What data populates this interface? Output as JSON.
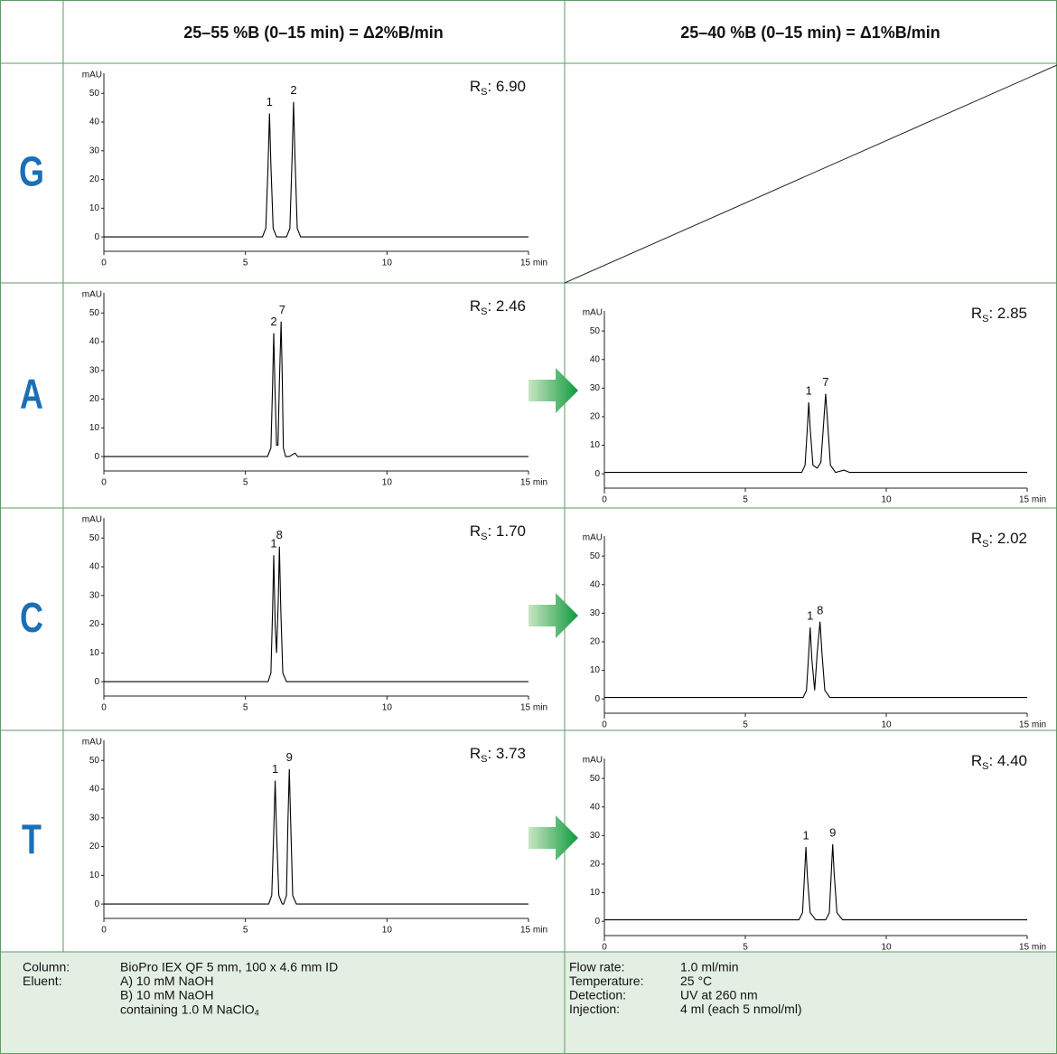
{
  "header": {
    "columns": [
      "25–55 %B (0–15 min) = Δ2%B/min",
      "25–40 %B (0–15 min) = Δ1%B/min"
    ]
  },
  "rows": [
    "G",
    "A",
    "C",
    "T"
  ],
  "chart_data": [
    {
      "type": "line",
      "y_label": "mAU",
      "xlim": [
        0,
        15
      ],
      "ylim": [
        -5,
        57
      ],
      "yticks": [
        0,
        10,
        20,
        30,
        40,
        50
      ],
      "xticks": [
        0,
        5,
        10,
        {
          "value": 15,
          "label": "15 min"
        }
      ],
      "color": "#000000",
      "x": [
        0,
        5.6,
        5.72,
        5.8,
        5.85,
        5.9,
        5.98,
        6.1,
        6.45,
        6.57,
        6.65,
        6.7,
        6.75,
        6.83,
        6.95,
        15
      ],
      "values": [
        0,
        0,
        3,
        25,
        43,
        25,
        3,
        0,
        0,
        3,
        28,
        47,
        28,
        3,
        0,
        0
      ],
      "peaks": [
        {
          "label": "1",
          "x": 5.85,
          "y": 43
        },
        {
          "label": "2",
          "x": 6.7,
          "y": 47
        }
      ],
      "resolution": {
        "symbol": "R",
        "subscript": "S",
        "text": ": 6.90"
      }
    },
    {
      "type": "line",
      "y_label": "mAU",
      "xlim": [
        0,
        15
      ],
      "ylim": [
        -5,
        57
      ],
      "yticks": [
        0,
        10,
        20,
        30,
        40,
        50
      ],
      "xticks": [
        0,
        5,
        10,
        {
          "value": 15,
          "label": "15 min"
        }
      ],
      "color": "#000000",
      "x": [
        0,
        5.78,
        5.9,
        5.96,
        6.0,
        6.04,
        6.1,
        6.15,
        6.2,
        6.26,
        6.3,
        6.34,
        6.42,
        6.55,
        6.75,
        6.85,
        6.95,
        15
      ],
      "values": [
        0,
        0,
        3,
        25,
        43,
        25,
        4,
        4,
        26,
        47,
        28,
        3,
        0,
        0,
        1.2,
        0,
        0,
        0
      ],
      "peaks": [
        {
          "label": "2",
          "x": 6.0,
          "y": 43
        },
        {
          "label": "7",
          "x": 6.3,
          "y": 47
        }
      ],
      "resolution": {
        "symbol": "R",
        "subscript": "S",
        "text": ": 2.46"
      }
    },
    {
      "type": "line",
      "y_label": "mAU",
      "xlim": [
        0,
        15
      ],
      "ylim": [
        -5,
        57
      ],
      "yticks": [
        0,
        10,
        20,
        30,
        40,
        50
      ],
      "xticks": [
        0,
        5,
        10,
        {
          "value": 15,
          "label": "15 min"
        }
      ],
      "color": "#000000",
      "x": [
        0,
        7.0,
        7.12,
        7.2,
        7.25,
        7.3,
        7.4,
        7.55,
        7.68,
        7.78,
        7.85,
        7.92,
        8.02,
        8.2,
        8.5,
        8.7,
        15
      ],
      "values": [
        0.5,
        0.5,
        3,
        16,
        25,
        16,
        3,
        2,
        4,
        18,
        28,
        18,
        3,
        0.5,
        1.3,
        0.5,
        0.5
      ],
      "peaks": [
        {
          "label": "1",
          "x": 7.25,
          "y": 25
        },
        {
          "label": "7",
          "x": 7.85,
          "y": 28
        }
      ],
      "resolution": {
        "symbol": "R",
        "subscript": "S",
        "text": ": 2.85"
      }
    },
    {
      "type": "line",
      "y_label": "mAU",
      "xlim": [
        0,
        15
      ],
      "ylim": [
        -5,
        57
      ],
      "yticks": [
        0,
        10,
        20,
        30,
        40,
        50
      ],
      "xticks": [
        0,
        5,
        10,
        {
          "value": 15,
          "label": "15 min"
        }
      ],
      "color": "#000000",
      "x": [
        0,
        5.8,
        5.9,
        5.96,
        6.0,
        6.05,
        6.1,
        6.16,
        6.2,
        6.25,
        6.32,
        6.45,
        15
      ],
      "values": [
        0,
        0,
        3,
        25,
        44,
        20,
        10,
        28,
        47,
        25,
        3,
        0,
        0
      ],
      "peaks": [
        {
          "label": "1",
          "x": 6.0,
          "y": 44
        },
        {
          "label": "8",
          "x": 6.2,
          "y": 47
        }
      ],
      "resolution": {
        "symbol": "R",
        "subscript": "S",
        "text": ": 1.70"
      }
    },
    {
      "type": "line",
      "y_label": "mAU",
      "xlim": [
        0,
        15
      ],
      "ylim": [
        -5,
        57
      ],
      "yticks": [
        0,
        10,
        20,
        30,
        40,
        50
      ],
      "xticks": [
        0,
        5,
        10,
        {
          "value": 15,
          "label": "15 min"
        }
      ],
      "color": "#000000",
      "x": [
        0,
        7.05,
        7.17,
        7.25,
        7.3,
        7.36,
        7.46,
        7.55,
        7.65,
        7.72,
        7.82,
        8.0,
        15
      ],
      "values": [
        0.5,
        0.5,
        3,
        16,
        25,
        14,
        3,
        16,
        27,
        16,
        3,
        0.5,
        0.5
      ],
      "peaks": [
        {
          "label": "1",
          "x": 7.3,
          "y": 25
        },
        {
          "label": "8",
          "x": 7.65,
          "y": 27
        }
      ],
      "resolution": {
        "symbol": "R",
        "subscript": "S",
        "text": ": 2.02"
      }
    },
    {
      "type": "line",
      "y_label": "mAU",
      "xlim": [
        0,
        15
      ],
      "ylim": [
        -5,
        57
      ],
      "yticks": [
        0,
        10,
        20,
        30,
        40,
        50
      ],
      "xticks": [
        0,
        5,
        10,
        {
          "value": 15,
          "label": "15 min"
        }
      ],
      "color": "#000000",
      "x": [
        0,
        5.82,
        5.93,
        6.0,
        6.05,
        6.1,
        6.18,
        6.3,
        6.35,
        6.45,
        6.5,
        6.55,
        6.6,
        6.67,
        6.8,
        15
      ],
      "values": [
        0,
        0,
        3,
        25,
        43,
        25,
        3,
        0,
        0,
        3,
        28,
        47,
        28,
        3,
        0,
        0
      ],
      "peaks": [
        {
          "label": "1",
          "x": 6.05,
          "y": 43
        },
        {
          "label": "9",
          "x": 6.55,
          "y": 47
        }
      ],
      "resolution": {
        "symbol": "R",
        "subscript": "S",
        "text": ": 3.73"
      }
    },
    {
      "type": "line",
      "y_label": "mAU",
      "xlim": [
        0,
        15
      ],
      "ylim": [
        -5,
        57
      ],
      "yticks": [
        0,
        10,
        20,
        30,
        40,
        50
      ],
      "xticks": [
        0,
        5,
        10,
        {
          "value": 15,
          "label": "15 min"
        }
      ],
      "color": "#000000",
      "x": [
        0,
        6.9,
        7.03,
        7.1,
        7.15,
        7.2,
        7.3,
        7.5,
        7.85,
        7.98,
        8.05,
        8.1,
        8.15,
        8.25,
        8.45,
        15
      ],
      "values": [
        0.5,
        0.5,
        3,
        16,
        26,
        16,
        3,
        0.5,
        0.5,
        3,
        17,
        27,
        17,
        3,
        0.5,
        0.5
      ],
      "peaks": [
        {
          "label": "1",
          "x": 7.15,
          "y": 26
        },
        {
          "label": "9",
          "x": 8.1,
          "y": 27
        }
      ],
      "resolution": {
        "symbol": "R",
        "subscript": "S",
        "text": ": 4.40"
      }
    }
  ],
  "footer": {
    "left": [
      {
        "label": "Column:",
        "lines": [
          "BioPro IEX QF 5 mm, 100 x 4.6 mm ID"
        ]
      },
      {
        "label": "Eluent:",
        "lines": [
          "A) 10 mM NaOH",
          "B) 10 mM NaOH",
          {
            "text": "containing 1.0 M NaClO",
            "subscript": "4"
          }
        ]
      }
    ],
    "right": [
      {
        "label": "Flow rate:",
        "lines": [
          "1.0 ml/min"
        ]
      },
      {
        "label": "Temperature:",
        "lines": [
          "25 °C"
        ]
      },
      {
        "label": "Detection:",
        "lines": [
          "UV at 260 nm"
        ]
      },
      {
        "label": "Injection:",
        "lines": [
          "4 ml (each 5 nmol/ml)"
        ]
      }
    ]
  }
}
